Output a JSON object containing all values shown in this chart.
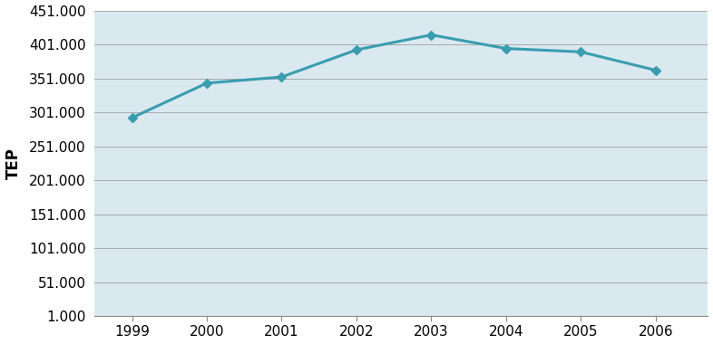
{
  "years": [
    1999,
    2000,
    2001,
    2002,
    2003,
    2004,
    2005,
    2006
  ],
  "values": [
    293000,
    344000,
    353000,
    393000,
    415000,
    395000,
    390000,
    363000
  ],
  "line_color": "#3A9DB0",
  "marker_style": "D",
  "marker_size": 5,
  "marker_color": "#3A9DB0",
  "ylabel": "TEP",
  "ylim": [
    1000,
    451000
  ],
  "yticks": [
    1000,
    51000,
    101000,
    151000,
    201000,
    251000,
    301000,
    351000,
    401000,
    451000
  ],
  "ytick_labels": [
    "1.000",
    "51.000",
    "101.000",
    "151.000",
    "201.000",
    "251.000",
    "301.000",
    "351.000",
    "401.000",
    "451.000"
  ],
  "plot_bg_color": "#DAE8F0",
  "fig_bg_color": "#FFFFFF",
  "grid_color": "#AAAAAA",
  "line_width": 2.2,
  "tick_label_color": "#000000",
  "tick_label_fontsize": 11,
  "ylabel_fontsize": 12,
  "ylabel_fontweight": "bold"
}
